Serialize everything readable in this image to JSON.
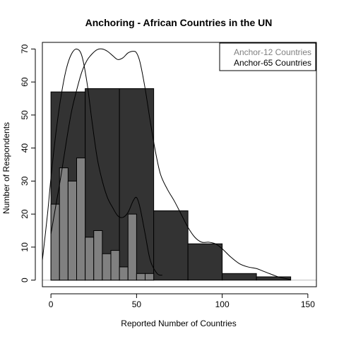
{
  "chart_data": {
    "type": "histogram",
    "title": "Anchoring - African Countries in the UN",
    "xlabel": "Reported Number of Countries",
    "ylabel": "Number of Respondents",
    "xlim": [
      -5,
      155
    ],
    "ylim": [
      -2,
      72
    ],
    "xticks": [
      0,
      50,
      100,
      150
    ],
    "yticks": [
      0,
      10,
      20,
      30,
      40,
      50,
      60,
      70
    ],
    "legend_position": "top-right",
    "colors": {
      "anchor12": "#808080",
      "anchor65": "#333333",
      "curve": "#000000",
      "zero_line": "#bebebe"
    },
    "series": [
      {
        "name": "Anchor-12 Countries",
        "color": "#808080",
        "bins": [
          {
            "x0": 0,
            "x1": 5,
            "count": 23
          },
          {
            "x0": 5,
            "x1": 10,
            "count": 34
          },
          {
            "x0": 10,
            "x1": 15,
            "count": 30
          },
          {
            "x0": 15,
            "x1": 20,
            "count": 37
          },
          {
            "x0": 20,
            "x1": 25,
            "count": 13
          },
          {
            "x0": 25,
            "x1": 30,
            "count": 15
          },
          {
            "x0": 30,
            "x1": 35,
            "count": 8
          },
          {
            "x0": 35,
            "x1": 40,
            "count": 9
          },
          {
            "x0": 40,
            "x1": 45,
            "count": 4
          },
          {
            "x0": 45,
            "x1": 50,
            "count": 20
          },
          {
            "x0": 50,
            "x1": 55,
            "count": 2
          },
          {
            "x0": 55,
            "x1": 60,
            "count": 2
          }
        ],
        "density_curve": [
          [
            -5,
            6
          ],
          [
            -2,
            20
          ],
          [
            0,
            31
          ],
          [
            3,
            45
          ],
          [
            6,
            56
          ],
          [
            9,
            64
          ],
          [
            12,
            68.5
          ],
          [
            15,
            70
          ],
          [
            18,
            68
          ],
          [
            21,
            60
          ],
          [
            24,
            48
          ],
          [
            27,
            37
          ],
          [
            30,
            30
          ],
          [
            33,
            25
          ],
          [
            36,
            22
          ],
          [
            39,
            19.5
          ],
          [
            42,
            19
          ],
          [
            45,
            20.5
          ],
          [
            48,
            24
          ],
          [
            50,
            25
          ],
          [
            52,
            22
          ],
          [
            55,
            14
          ],
          [
            58,
            6
          ],
          [
            62,
            2
          ],
          [
            65,
            1.5
          ]
        ]
      },
      {
        "name": "Anchor-65 Countries",
        "color": "#333333",
        "bins": [
          {
            "x0": 0,
            "x1": 20,
            "count": 57
          },
          {
            "x0": 20,
            "x1": 40,
            "count": 58
          },
          {
            "x0": 40,
            "x1": 60,
            "count": 58
          },
          {
            "x0": 60,
            "x1": 80,
            "count": 21
          },
          {
            "x0": 80,
            "x1": 100,
            "count": 11
          },
          {
            "x0": 100,
            "x1": 120,
            "count": 2
          },
          {
            "x0": 120,
            "x1": 140,
            "count": 1
          }
        ],
        "density_curve": [
          [
            0,
            14
          ],
          [
            3,
            23
          ],
          [
            6,
            32
          ],
          [
            9,
            42
          ],
          [
            12,
            51
          ],
          [
            15,
            57.5
          ],
          [
            18,
            63
          ],
          [
            21,
            66.5
          ],
          [
            24,
            68.5
          ],
          [
            27,
            69.8
          ],
          [
            30,
            70
          ],
          [
            33,
            69.3
          ],
          [
            36,
            68
          ],
          [
            39,
            66.8
          ],
          [
            42,
            67.3
          ],
          [
            45,
            68.8
          ],
          [
            48,
            69.3
          ],
          [
            50,
            68.8
          ],
          [
            52,
            66
          ],
          [
            55,
            58
          ],
          [
            58,
            48
          ],
          [
            61,
            39
          ],
          [
            64,
            32
          ],
          [
            68,
            27.5
          ],
          [
            72,
            24
          ],
          [
            76,
            20
          ],
          [
            80,
            16
          ],
          [
            84,
            13
          ],
          [
            88,
            11.5
          ],
          [
            92,
            11.5
          ],
          [
            96,
            11
          ],
          [
            100,
            9.5
          ],
          [
            105,
            7
          ],
          [
            110,
            5
          ],
          [
            115,
            4
          ],
          [
            120,
            3.5
          ],
          [
            125,
            2.5
          ],
          [
            130,
            1.5
          ],
          [
            134,
            0.8
          ],
          [
            140,
            0.2
          ]
        ]
      }
    ]
  }
}
